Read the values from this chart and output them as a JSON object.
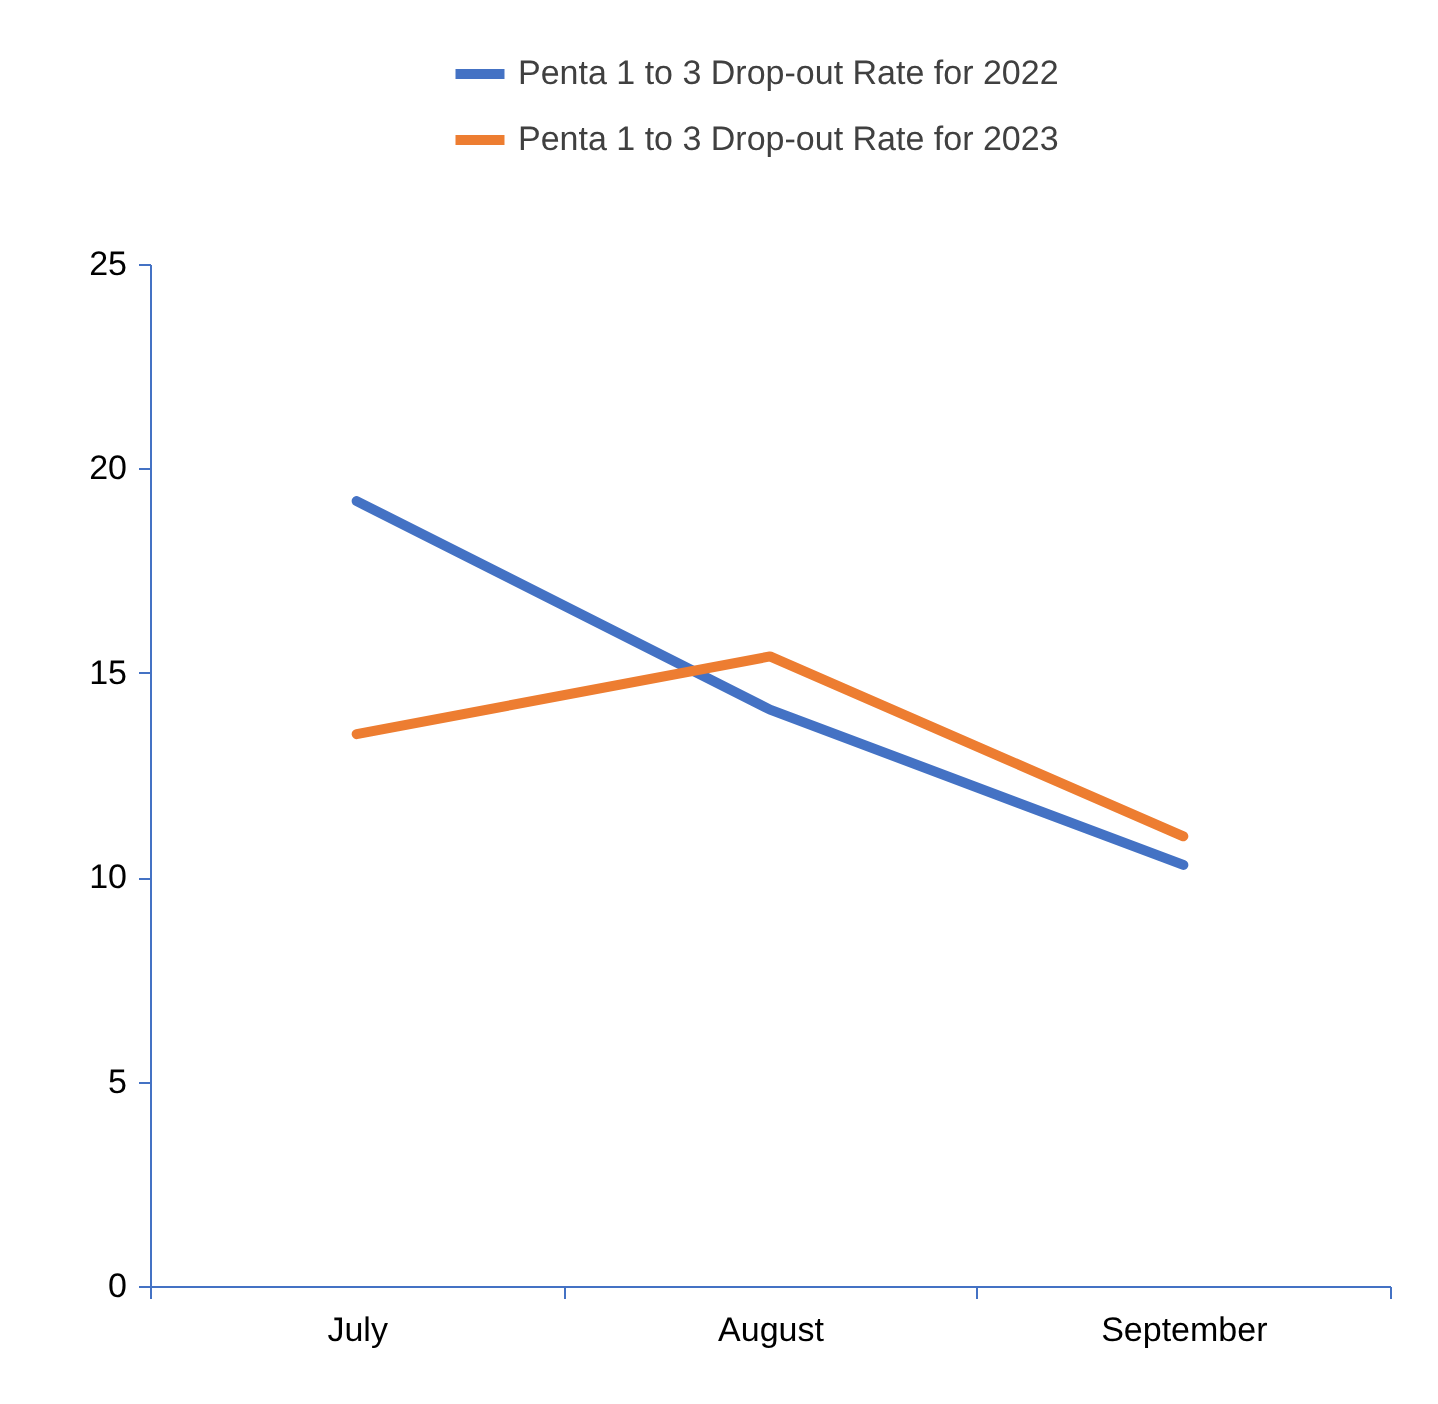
{
  "chart_data": {
    "type": "line",
    "categories": [
      "July",
      "August",
      "September"
    ],
    "series": [
      {
        "name": "Penta 1 to 3 Drop-out Rate for 2022",
        "color": "#4472c4",
        "values": [
          19.2,
          14.1,
          10.3
        ]
      },
      {
        "name": "Penta 1 to 3 Drop-out Rate for 2023",
        "color": "#ed7d31",
        "values": [
          13.5,
          15.4,
          11.0
        ]
      }
    ],
    "ylim": [
      0,
      25
    ],
    "yticks": [
      0,
      5,
      10,
      15,
      20,
      25
    ],
    "grid": false,
    "legend": "top",
    "marker": "none",
    "line_style": "solid"
  }
}
